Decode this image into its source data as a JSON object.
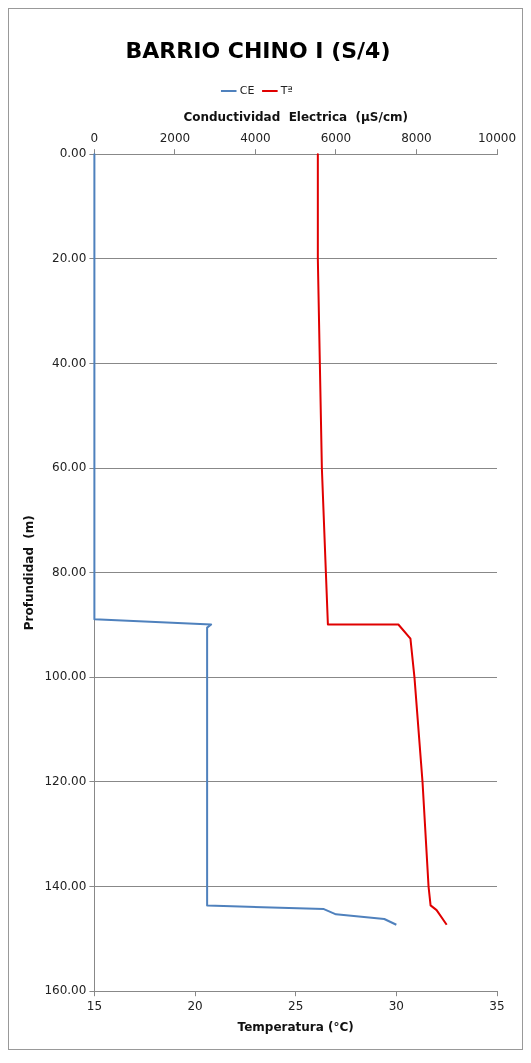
{
  "chart_data": {
    "type": "line",
    "orientation": "horizontal",
    "title": "BARRIO CHINO I (S/4)",
    "xlabel": "Temperatura (°C)",
    "x2label": "Conductividad  Electrica  (µS/cm)",
    "ylabel": "Profundidad  (m)",
    "xlim": [
      15,
      35
    ],
    "xticks": [
      15,
      20,
      25,
      30,
      35
    ],
    "x2lim": [
      0,
      10000
    ],
    "x2ticks": [
      0,
      2000,
      4000,
      6000,
      8000,
      10000
    ],
    "ylim": [
      160,
      0
    ],
    "yticks": [
      {
        "value": 0,
        "label": "0.00"
      },
      {
        "value": 20,
        "label": "20.00"
      },
      {
        "value": 40,
        "label": "40.00"
      },
      {
        "value": 60,
        "label": "60.00"
      },
      {
        "value": 80,
        "label": "80.00"
      },
      {
        "value": 100,
        "label": "100.00"
      },
      {
        "value": 120,
        "label": "120.00"
      },
      {
        "value": 140,
        "label": "140.00"
      },
      {
        "value": 160,
        "label": "160.00"
      }
    ],
    "grid": "y",
    "legend": "top",
    "marker": "none",
    "line_style": "solid",
    "series": [
      {
        "name": "CE",
        "color": "#4f81bd",
        "axis": "x2",
        "x": [
          0,
          88.9,
          89.9,
          90.5,
          143.6,
          144.3,
          145.3,
          146.2,
          147.3
        ],
        "values": [
          0,
          0,
          2900,
          2800,
          2800,
          5700,
          6000,
          7200,
          7500
        ]
      },
      {
        "name": "Tª",
        "color": "#e00000",
        "x": [
          0,
          20,
          40,
          60,
          80,
          89.9,
          89.9,
          92.6,
          100,
          120,
          140,
          143.6,
          144.5,
          147.3
        ],
        "values": [
          26.1,
          26.1,
          26.2,
          26.3,
          26.5,
          26.6,
          30.1,
          30.7,
          30.9,
          31.3,
          31.6,
          31.7,
          32.0,
          32.5
        ]
      }
    ]
  }
}
